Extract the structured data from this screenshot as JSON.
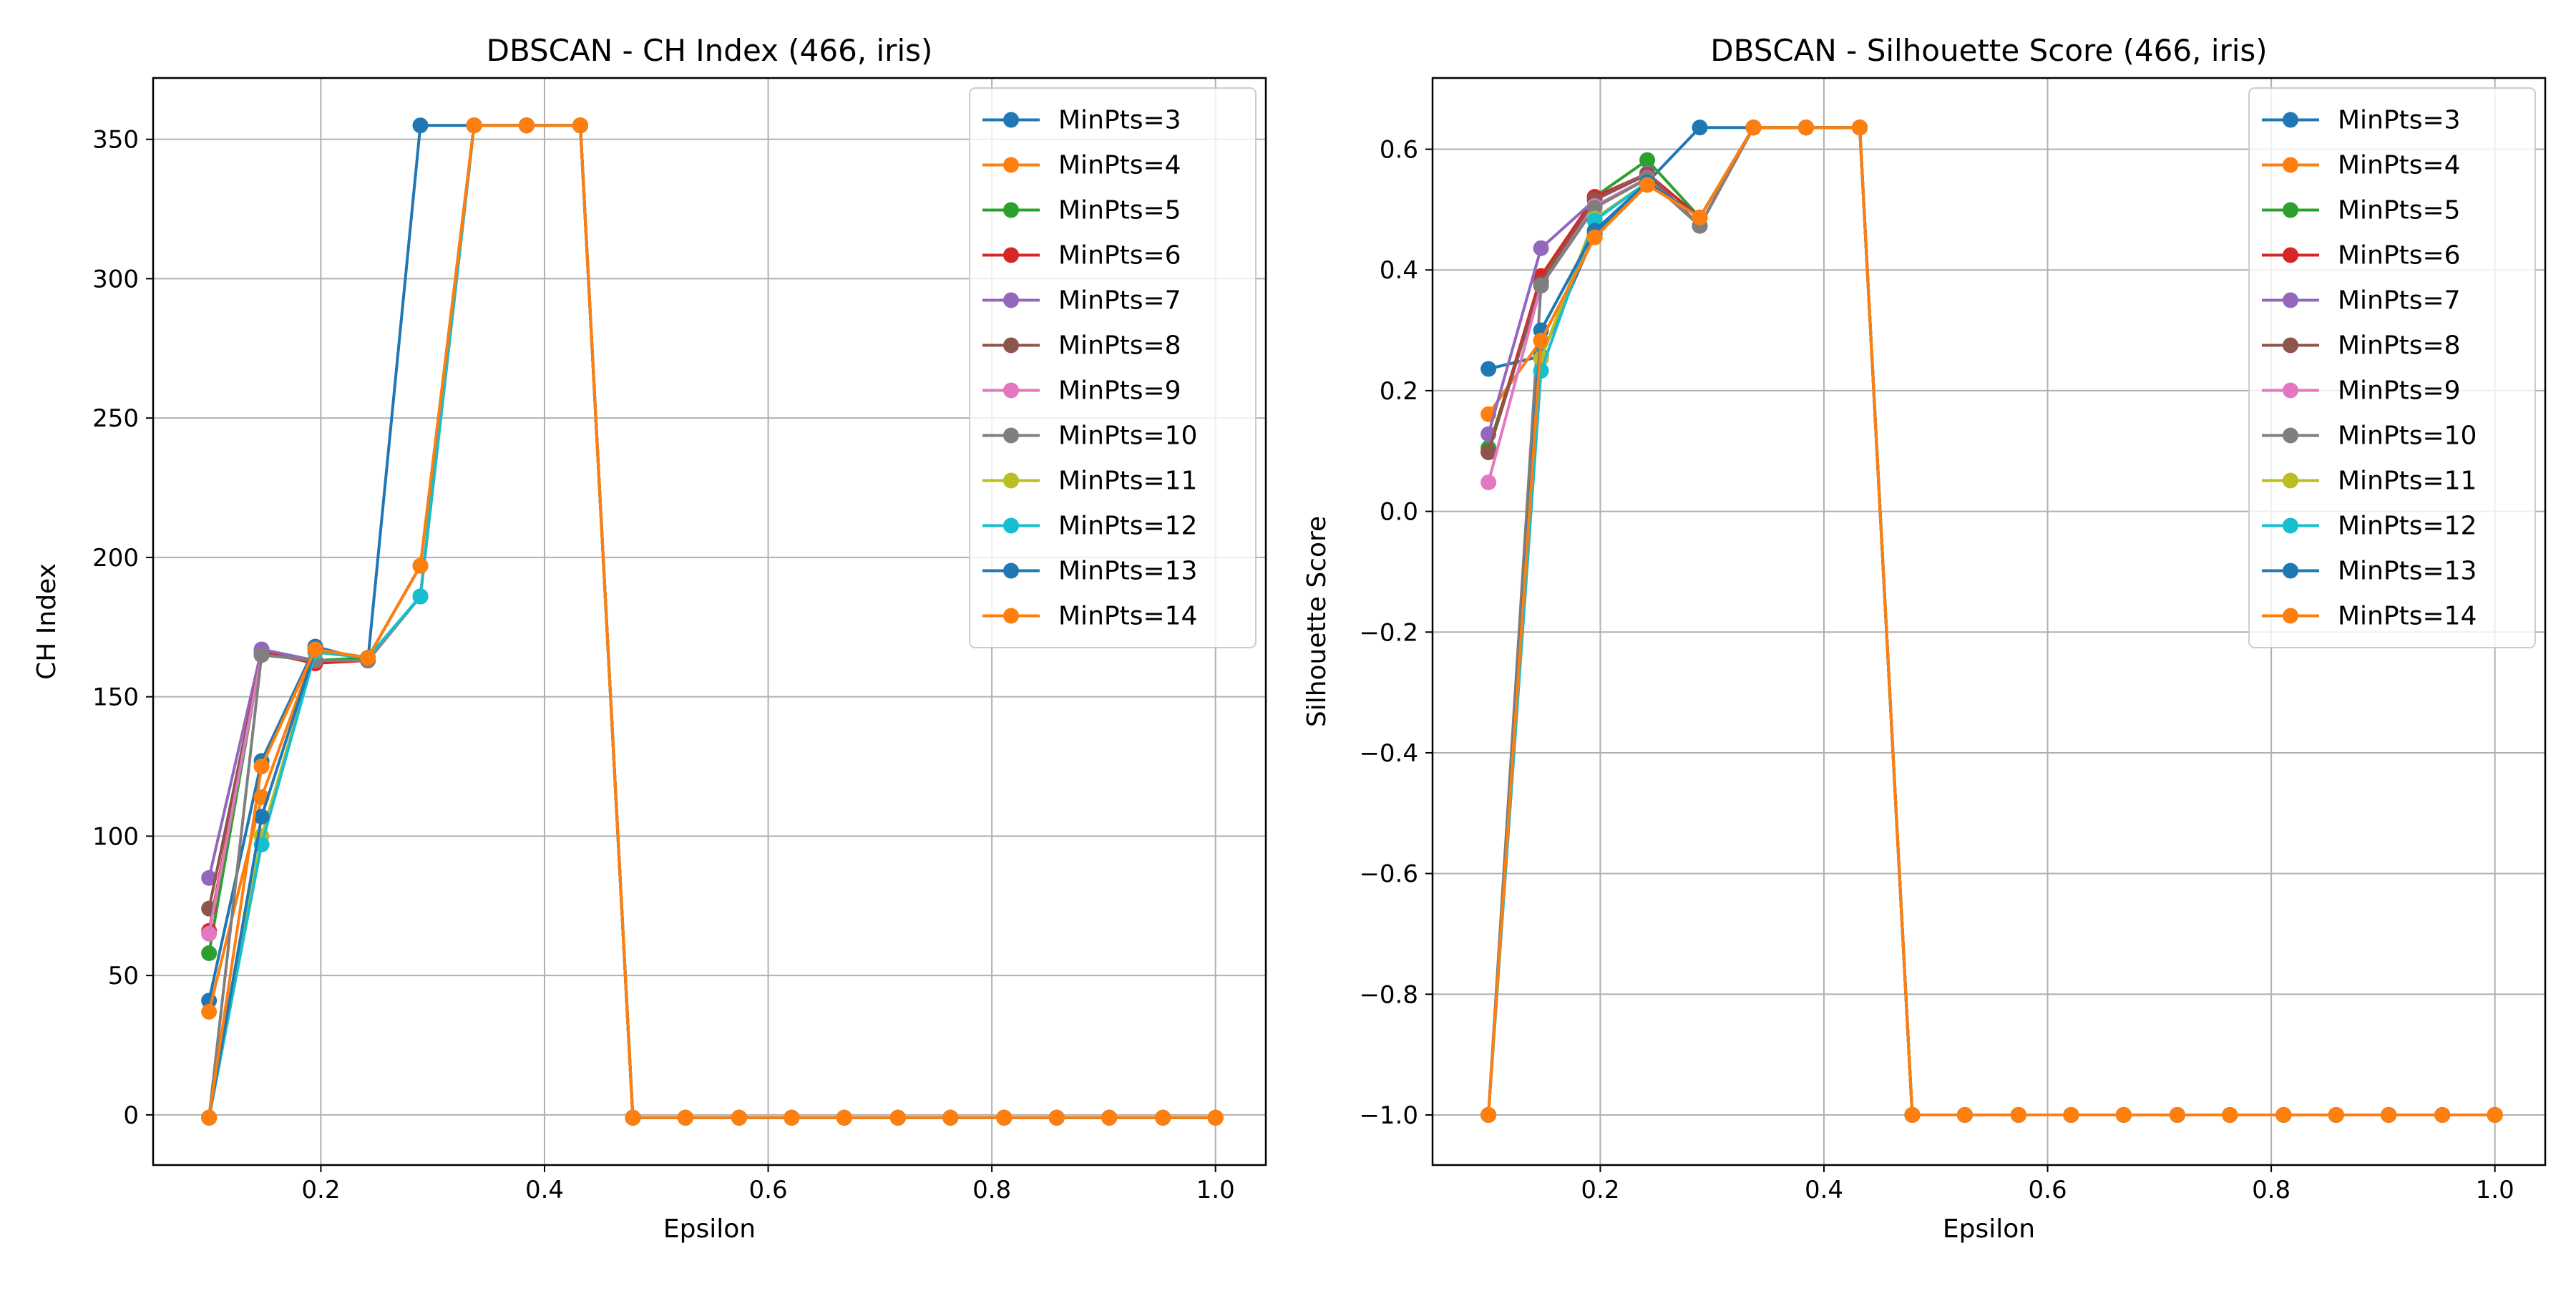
{
  "figure": {
    "background": "#ffffff"
  },
  "chart_data": [
    {
      "type": "line",
      "title": "DBSCAN - CH Index (466, iris)",
      "xlabel": "Epsilon",
      "ylabel": "CH Index",
      "xlim": [
        0.05,
        1.045
      ],
      "ylim": [
        -18,
        372
      ],
      "xticks": [
        0.2,
        0.4,
        0.6,
        0.8,
        1.0
      ],
      "xtick_labels": [
        "0.2",
        "0.4",
        "0.6",
        "0.8",
        "1.0"
      ],
      "yticks": [
        0,
        50,
        100,
        150,
        200,
        250,
        300,
        350
      ],
      "ytick_labels": [
        "0",
        "50",
        "100",
        "150",
        "200",
        "250",
        "300",
        "350"
      ],
      "grid": true,
      "legend_position": "top-right",
      "x": [
        0.1,
        0.147,
        0.195,
        0.242,
        0.289,
        0.337,
        0.384,
        0.432,
        0.479,
        0.526,
        0.574,
        0.621,
        0.668,
        0.716,
        0.763,
        0.811,
        0.858,
        0.905,
        0.953,
        1.0
      ],
      "series": [
        {
          "name": "MinPts=3",
          "color": "#1f77b4",
          "values": [
            41,
            127,
            168,
            163,
            355,
            355,
            355,
            355,
            -1,
            -1,
            -1,
            -1,
            -1,
            -1,
            -1,
            -1,
            -1,
            -1,
            -1,
            -1
          ]
        },
        {
          "name": "MinPts=4",
          "color": "#ff7f0e",
          "values": [
            37,
            114,
            167,
            164,
            197,
            355,
            355,
            355,
            -1,
            -1,
            -1,
            -1,
            -1,
            -1,
            -1,
            -1,
            -1,
            -1,
            -1,
            -1
          ]
        },
        {
          "name": "MinPts=5",
          "color": "#2ca02c",
          "values": [
            58,
            166,
            163,
            164,
            186,
            355,
            355,
            355,
            -1,
            -1,
            -1,
            -1,
            -1,
            -1,
            -1,
            -1,
            -1,
            -1,
            -1,
            -1
          ]
        },
        {
          "name": "MinPts=6",
          "color": "#d62728",
          "values": [
            66,
            166,
            162,
            163,
            186,
            355,
            355,
            355,
            -1,
            -1,
            -1,
            -1,
            -1,
            -1,
            -1,
            -1,
            -1,
            -1,
            -1,
            -1
          ]
        },
        {
          "name": "MinPts=7",
          "color": "#9467bd",
          "values": [
            85,
            167,
            163,
            163,
            186,
            355,
            355,
            355,
            -1,
            -1,
            -1,
            -1,
            -1,
            -1,
            -1,
            -1,
            -1,
            -1,
            -1,
            -1
          ]
        },
        {
          "name": "MinPts=8",
          "color": "#8c564b",
          "values": [
            74,
            165,
            163,
            163,
            186,
            355,
            355,
            355,
            -1,
            -1,
            -1,
            -1,
            -1,
            -1,
            -1,
            -1,
            -1,
            -1,
            -1,
            -1
          ]
        },
        {
          "name": "MinPts=9",
          "color": "#e377c2",
          "values": [
            65,
            165,
            163,
            163,
            186,
            355,
            355,
            355,
            -1,
            -1,
            -1,
            -1,
            -1,
            -1,
            -1,
            -1,
            -1,
            -1,
            -1,
            -1
          ]
        },
        {
          "name": "MinPts=10",
          "color": "#7f7f7f",
          "values": [
            -1,
            165,
            163,
            163,
            186,
            355,
            355,
            355,
            -1,
            -1,
            -1,
            -1,
            -1,
            -1,
            -1,
            -1,
            -1,
            -1,
            -1,
            -1
          ]
        },
        {
          "name": "MinPts=11",
          "color": "#bcbd22",
          "values": [
            -1,
            100,
            166,
            164,
            186,
            355,
            355,
            355,
            -1,
            -1,
            -1,
            -1,
            -1,
            -1,
            -1,
            -1,
            -1,
            -1,
            -1,
            -1
          ]
        },
        {
          "name": "MinPts=12",
          "color": "#17becf",
          "values": [
            -1,
            97,
            166,
            164,
            186,
            355,
            355,
            355,
            -1,
            -1,
            -1,
            -1,
            -1,
            -1,
            -1,
            -1,
            -1,
            -1,
            -1,
            -1
          ]
        },
        {
          "name": "MinPts=13",
          "color": "#1f77b4",
          "values": [
            -1,
            107,
            167,
            164,
            197,
            355,
            355,
            355,
            -1,
            -1,
            -1,
            -1,
            -1,
            -1,
            -1,
            -1,
            -1,
            -1,
            -1,
            -1
          ]
        },
        {
          "name": "MinPts=14",
          "color": "#ff7f0e",
          "values": [
            -1,
            125,
            167,
            164,
            197,
            355,
            355,
            355,
            -1,
            -1,
            -1,
            -1,
            -1,
            -1,
            -1,
            -1,
            -1,
            -1,
            -1,
            -1
          ]
        }
      ]
    },
    {
      "type": "line",
      "title": "DBSCAN - Silhouette Score (466, iris)",
      "xlabel": "Epsilon",
      "ylabel": "Silhouette Score",
      "xlim": [
        0.05,
        1.045
      ],
      "ylim": [
        -1.083,
        0.718
      ],
      "xticks": [
        0.2,
        0.4,
        0.6,
        0.8,
        1.0
      ],
      "xtick_labels": [
        "0.2",
        "0.4",
        "0.6",
        "0.8",
        "1.0"
      ],
      "yticks": [
        -1.0,
        -0.8,
        -0.6,
        -0.4,
        -0.2,
        0.0,
        0.2,
        0.4,
        0.6
      ],
      "ytick_labels": [
        "−1.0",
        "−0.8",
        "−0.6",
        "−0.4",
        "−0.2",
        "0.0",
        "0.2",
        "0.4",
        "0.6"
      ],
      "grid": true,
      "legend_position": "top-right",
      "x": [
        0.1,
        0.147,
        0.195,
        0.242,
        0.289,
        0.337,
        0.384,
        0.432,
        0.479,
        0.526,
        0.574,
        0.621,
        0.668,
        0.716,
        0.763,
        0.811,
        0.858,
        0.905,
        0.953,
        1.0
      ],
      "series": [
        {
          "name": "MinPts=3",
          "color": "#1f77b4",
          "values": [
            0.236,
            0.257,
            0.459,
            0.545,
            0.636,
            0.636,
            0.636,
            0.636,
            -1,
            -1,
            -1,
            -1,
            -1,
            -1,
            -1,
            -1,
            -1,
            -1,
            -1,
            -1
          ]
        },
        {
          "name": "MinPts=4",
          "color": "#ff7f0e",
          "values": [
            0.161,
            0.283,
            0.454,
            0.541,
            0.487,
            0.636,
            0.636,
            0.636,
            -1,
            -1,
            -1,
            -1,
            -1,
            -1,
            -1,
            -1,
            -1,
            -1,
            -1,
            -1
          ]
        },
        {
          "name": "MinPts=5",
          "color": "#2ca02c",
          "values": [
            0.105,
            0.38,
            0.521,
            0.582,
            0.487,
            0.636,
            0.636,
            0.636,
            -1,
            -1,
            -1,
            -1,
            -1,
            -1,
            -1,
            -1,
            -1,
            -1,
            -1,
            -1
          ]
        },
        {
          "name": "MinPts=6",
          "color": "#d62728",
          "values": [
            0.098,
            0.39,
            0.521,
            0.56,
            0.487,
            0.636,
            0.636,
            0.636,
            -1,
            -1,
            -1,
            -1,
            -1,
            -1,
            -1,
            -1,
            -1,
            -1,
            -1,
            -1
          ]
        },
        {
          "name": "MinPts=7",
          "color": "#9467bd",
          "values": [
            0.128,
            0.436,
            0.516,
            0.56,
            0.473,
            0.636,
            0.636,
            0.636,
            -1,
            -1,
            -1,
            -1,
            -1,
            -1,
            -1,
            -1,
            -1,
            -1,
            -1,
            -1
          ]
        },
        {
          "name": "MinPts=8",
          "color": "#8c564b",
          "values": [
            0.098,
            0.378,
            0.516,
            0.558,
            0.473,
            0.636,
            0.636,
            0.636,
            -1,
            -1,
            -1,
            -1,
            -1,
            -1,
            -1,
            -1,
            -1,
            -1,
            -1,
            -1
          ]
        },
        {
          "name": "MinPts=9",
          "color": "#e377c2",
          "values": [
            0.048,
            0.374,
            0.506,
            0.552,
            0.473,
            0.636,
            0.636,
            0.636,
            -1,
            -1,
            -1,
            -1,
            -1,
            -1,
            -1,
            -1,
            -1,
            -1,
            -1,
            -1
          ]
        },
        {
          "name": "MinPts=10",
          "color": "#7f7f7f",
          "values": [
            -1,
            0.374,
            0.503,
            0.551,
            0.473,
            0.636,
            0.636,
            0.636,
            -1,
            -1,
            -1,
            -1,
            -1,
            -1,
            -1,
            -1,
            -1,
            -1,
            -1,
            -1
          ]
        },
        {
          "name": "MinPts=11",
          "color": "#bcbd22",
          "values": [
            -1,
            0.253,
            0.485,
            0.545,
            0.487,
            0.636,
            0.636,
            0.636,
            -1,
            -1,
            -1,
            -1,
            -1,
            -1,
            -1,
            -1,
            -1,
            -1,
            -1,
            -1
          ]
        },
        {
          "name": "MinPts=12",
          "color": "#17becf",
          "values": [
            -1,
            0.233,
            0.482,
            0.545,
            0.487,
            0.636,
            0.636,
            0.636,
            -1,
            -1,
            -1,
            -1,
            -1,
            -1,
            -1,
            -1,
            -1,
            -1,
            -1,
            -1
          ]
        },
        {
          "name": "MinPts=13",
          "color": "#1f77b4",
          "values": [
            -1,
            0.3,
            0.465,
            0.545,
            0.487,
            0.636,
            0.636,
            0.636,
            -1,
            -1,
            -1,
            -1,
            -1,
            -1,
            -1,
            -1,
            -1,
            -1,
            -1,
            -1
          ]
        },
        {
          "name": "MinPts=14",
          "color": "#ff7f0e",
          "values": [
            -1,
            0.283,
            0.454,
            0.541,
            0.487,
            0.636,
            0.636,
            0.636,
            -1,
            -1,
            -1,
            -1,
            -1,
            -1,
            -1,
            -1,
            -1,
            -1,
            -1,
            -1
          ]
        }
      ]
    }
  ]
}
